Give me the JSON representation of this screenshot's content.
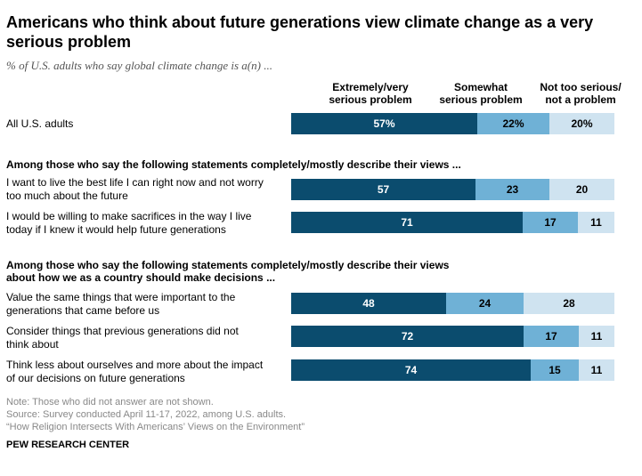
{
  "title": "Americans who think about future generations view climate change as a very serious problem",
  "subtitle": "% of U.S. adults who say global climate change is a(n) ...",
  "colors": {
    "extremely": "#0b4c6e",
    "somewhat": "#6fb1d6",
    "not_too": "#cfe3f0",
    "label_dark": "#ffffff",
    "label_light": "#000000"
  },
  "chart_data": {
    "type": "bar",
    "orientation": "horizontal",
    "stacked": true,
    "series": [
      {
        "name": "Extremely/very serious problem",
        "values": [
          57,
          57,
          71,
          48,
          72,
          74
        ]
      },
      {
        "name": "Somewhat serious problem",
        "values": [
          22,
          23,
          17,
          24,
          17,
          15
        ]
      },
      {
        "name": "Not too serious/ not a problem",
        "values": [
          20,
          20,
          11,
          28,
          11,
          11
        ]
      }
    ],
    "categories": [
      "All U.S. adults",
      "I want to live the best life I can right now and not worry too much about the future",
      "I would be willing to make sacrifices in the way I live today if I knew it would help future generations",
      "Value the same things that were important to the generations that came before us",
      "Consider things that previous generations did not think about",
      "Think less about ourselves and more about the impact of our decisions on future generations"
    ],
    "value_labels": [
      [
        "57%",
        "22%",
        "20%"
      ],
      [
        "57",
        "23",
        "20"
      ],
      [
        "71",
        "17",
        "11"
      ],
      [
        "48",
        "24",
        "28"
      ],
      [
        "72",
        "17",
        "11"
      ],
      [
        "74",
        "15",
        "11"
      ]
    ],
    "col_headers": [
      [
        "Extremely/very",
        "serious problem"
      ],
      [
        "Somewhat",
        "serious problem"
      ],
      [
        "Not too serious/",
        "not a problem"
      ]
    ],
    "row_labels": [
      [
        "All U.S. adults"
      ],
      [
        "I want to live the best life I can right now and not worry",
        "too much about the future"
      ],
      [
        "I would be willing to make sacrifices in the way I live",
        "today if I knew it would help future generations"
      ],
      [
        "Value the same things that were important to the",
        "generations that came before us"
      ],
      [
        "Consider things that previous generations did not",
        "think about"
      ],
      [
        "Think less about ourselves and more about the impact",
        "of our decisions on future generations"
      ]
    ],
    "sections": [
      [
        "Among those who say the following statements completely/mostly describe their views ..."
      ],
      [
        "Among those who say the following statements completely/mostly describe their views",
        "about how we as a country should make decisions ..."
      ]
    ],
    "xlim": [
      0,
      100
    ],
    "legend": "column headers above bars",
    "grid": false
  },
  "notes": [
    "Note: Those who did not answer are not shown.",
    "Source: Survey conducted April 11-17, 2022, among U.S. adults.",
    "“How Religion Intersects With Americans’ Views on the Environment”"
  ],
  "logo": "PEW RESEARCH CENTER"
}
